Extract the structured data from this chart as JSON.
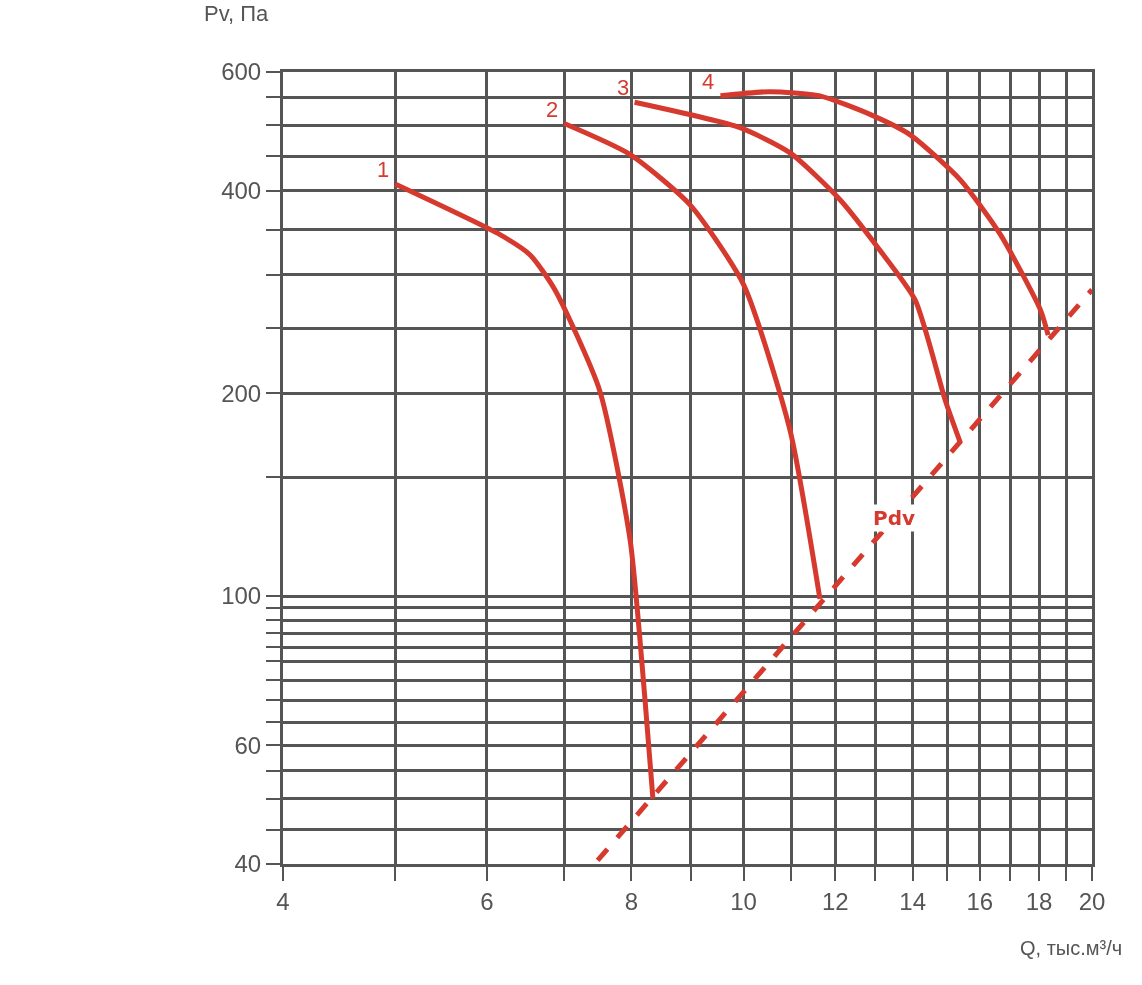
{
  "chart_data": {
    "type": "line",
    "xlabel": "Q, тыс.м³/ч",
    "ylabel": "Pv, Па",
    "log": "xy",
    "xlim": [
      4,
      20
    ],
    "ylim": [
      40,
      600
    ],
    "xticks": [
      4,
      {
        "value": 5,
        "label": null
      },
      6,
      {
        "value": 7,
        "label": null
      },
      8,
      {
        "value": 9,
        "label": null
      },
      10,
      {
        "value": 11,
        "label": null
      },
      12,
      {
        "value": 13,
        "label": null
      },
      14,
      {
        "value": 15,
        "label": null
      },
      16,
      {
        "value": 17,
        "label": null
      },
      18,
      {
        "value": 19,
        "label": null
      },
      20
    ],
    "yticks": [
      40,
      {
        "value": 45,
        "label": null
      },
      {
        "value": 50,
        "label": null
      },
      {
        "value": 55,
        "label": null
      },
      60,
      {
        "value": 65,
        "label": null
      },
      {
        "value": 70,
        "label": null
      },
      {
        "value": 75,
        "label": null
      },
      {
        "value": 80,
        "label": null
      },
      {
        "value": 84,
        "label": null
      },
      {
        "value": 88,
        "label": null
      },
      {
        "value": 92,
        "label": null
      },
      {
        "value": 96,
        "label": null
      },
      100,
      {
        "value": 150,
        "label": null
      },
      200,
      {
        "value": 250,
        "label": null
      },
      {
        "value": 300,
        "label": null
      },
      {
        "value": 350,
        "label": null
      },
      400,
      {
        "value": 450,
        "label": null
      },
      {
        "value": 500,
        "label": null
      },
      {
        "value": 550,
        "label": null
      },
      600
    ],
    "grid": true,
    "legend": false,
    "marker": "none",
    "series": [
      {
        "name": "1",
        "color": "#d63a2f",
        "line_style": "solid",
        "x": [
          5,
          6.16,
          6.54,
          6.87,
          7.51,
          7.98,
          8.22,
          8.35
        ],
        "values": [
          409,
          344,
          321,
          285,
          202,
          121,
          70,
          50
        ]
      },
      {
        "name": "2",
        "color": "#d63a2f",
        "line_style": "solid",
        "x": [
          7,
          7.97,
          8.99,
          10,
          10.97,
          11.64
        ],
        "values": [
          503,
          453,
          381,
          290,
          176,
          99
        ]
      },
      {
        "name": "3",
        "color": "#d63a2f",
        "line_style": "solid",
        "x": [
          8.05,
          9.93,
          10.97,
          12.11,
          13.1,
          14.07,
          14.94,
          15.39
        ],
        "values": [
          541,
          496,
          455,
          388,
          327,
          275,
          195,
          169
        ]
      },
      {
        "name": "4",
        "color": "#d63a2f",
        "line_style": "solid",
        "x": [
          9.55,
          10.54,
          11.64,
          12.86,
          13.93,
          15.39,
          16.67,
          18.05,
          18.33
        ],
        "values": [
          553,
          561,
          553,
          519,
          484,
          415,
          344,
          266,
          244
        ]
      },
      {
        "name": "Pdv",
        "color": "#d63a2f",
        "line_style": "dashed",
        "x": [
          7.48,
          20
        ],
        "values": [
          40.5,
          285
        ]
      }
    ]
  }
}
